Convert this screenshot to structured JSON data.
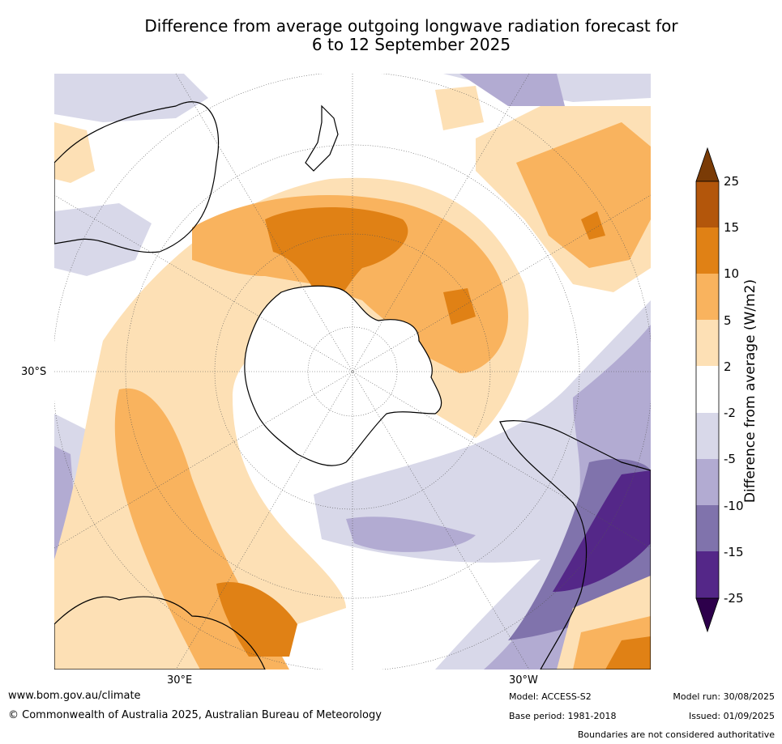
{
  "title_line1": "Difference from average outgoing longwave radiation forecast for",
  "title_line2": "6 to 12 September 2025",
  "axis_labels": {
    "lat": "30°S",
    "lon_east": "30°E",
    "lon_west": "30°W"
  },
  "colorbar": {
    "label": "Difference from average (W/m2)",
    "ticks": [
      "25",
      "15",
      "10",
      "5",
      "2",
      "-2",
      "-5",
      "-10",
      "-15",
      "-25"
    ],
    "colors": {
      "above_25": "#7a3b06",
      "15_25": "#b3560b",
      "10_15": "#e08115",
      "5_10": "#f9b35e",
      "2_5": "#fde0b5",
      "neutral": "#ffffff",
      "m5_m2": "#d8d8e9",
      "m10_m5": "#b2abd2",
      "m15_m10": "#8073ac",
      "m25_m15": "#542788",
      "below_m25": "#2d004b"
    }
  },
  "footer": {
    "website": "www.bom.gov.au/climate",
    "copyright": "© Commonwealth of Australia 2025, Australian Bureau of Meteorology",
    "model": "Model: ACCESS-S2",
    "base_period": "Base period: 1981-2018",
    "model_run": "Model run: 30/08/2025",
    "issued": "Issued: 01/09/2025",
    "disclaimer": "Boundaries are not considered authoritative"
  }
}
